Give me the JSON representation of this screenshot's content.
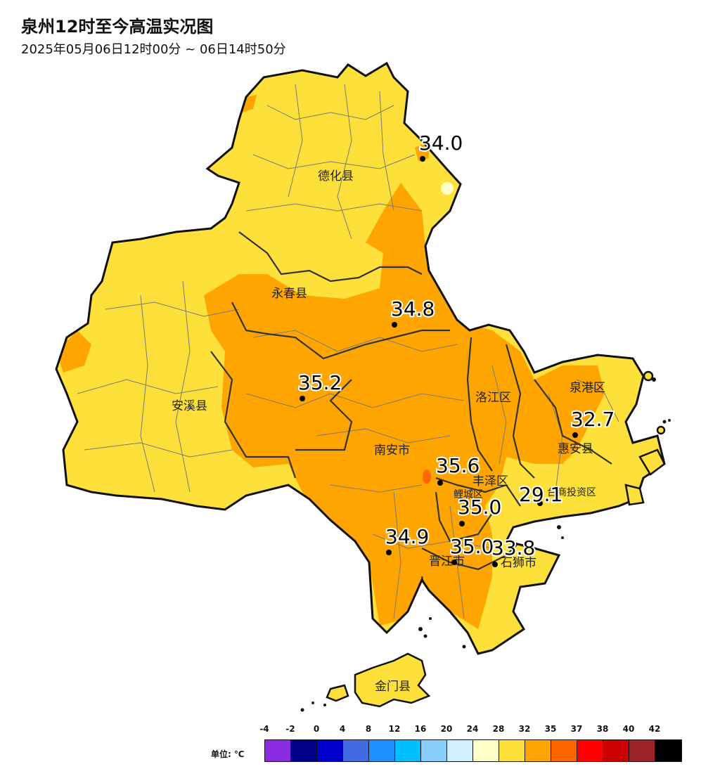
{
  "title": "泉州12时至今高温实况图",
  "subtitle": "2025年05月06日12时00分 ~ 06日14时50分",
  "counties": [
    "德化县",
    "永春县",
    "安溪县",
    "南安市",
    "洛江区",
    "泉港区",
    "惠安县",
    "丰泽区",
    "鲤城区",
    "台商投资区",
    "晋江市",
    "石狮市",
    "金门县"
  ],
  "stations": [
    "34.0",
    "34.8",
    "35.2",
    "35.6",
    "35.0",
    "35.0",
    "34.9",
    "33.8",
    "32.7",
    "29.1"
  ],
  "legend": {
    "unit": "单位: ℃",
    "ticks": [
      "-4",
      "-2",
      "0",
      "4",
      "8",
      "12",
      "16",
      "20",
      "24",
      "28",
      "32",
      "35",
      "37",
      "38",
      "40",
      "42"
    ],
    "colors": [
      "#8a2be2",
      "#00008b",
      "#0000cd",
      "#4169e1",
      "#1e90ff",
      "#00bfff",
      "#87cefa",
      "#d0f0ff",
      "#ffffc8",
      "#fde03a",
      "#ffa500",
      "#ff6600",
      "#ff0000",
      "#cc0000",
      "#9b2226",
      "#000000"
    ]
  }
}
